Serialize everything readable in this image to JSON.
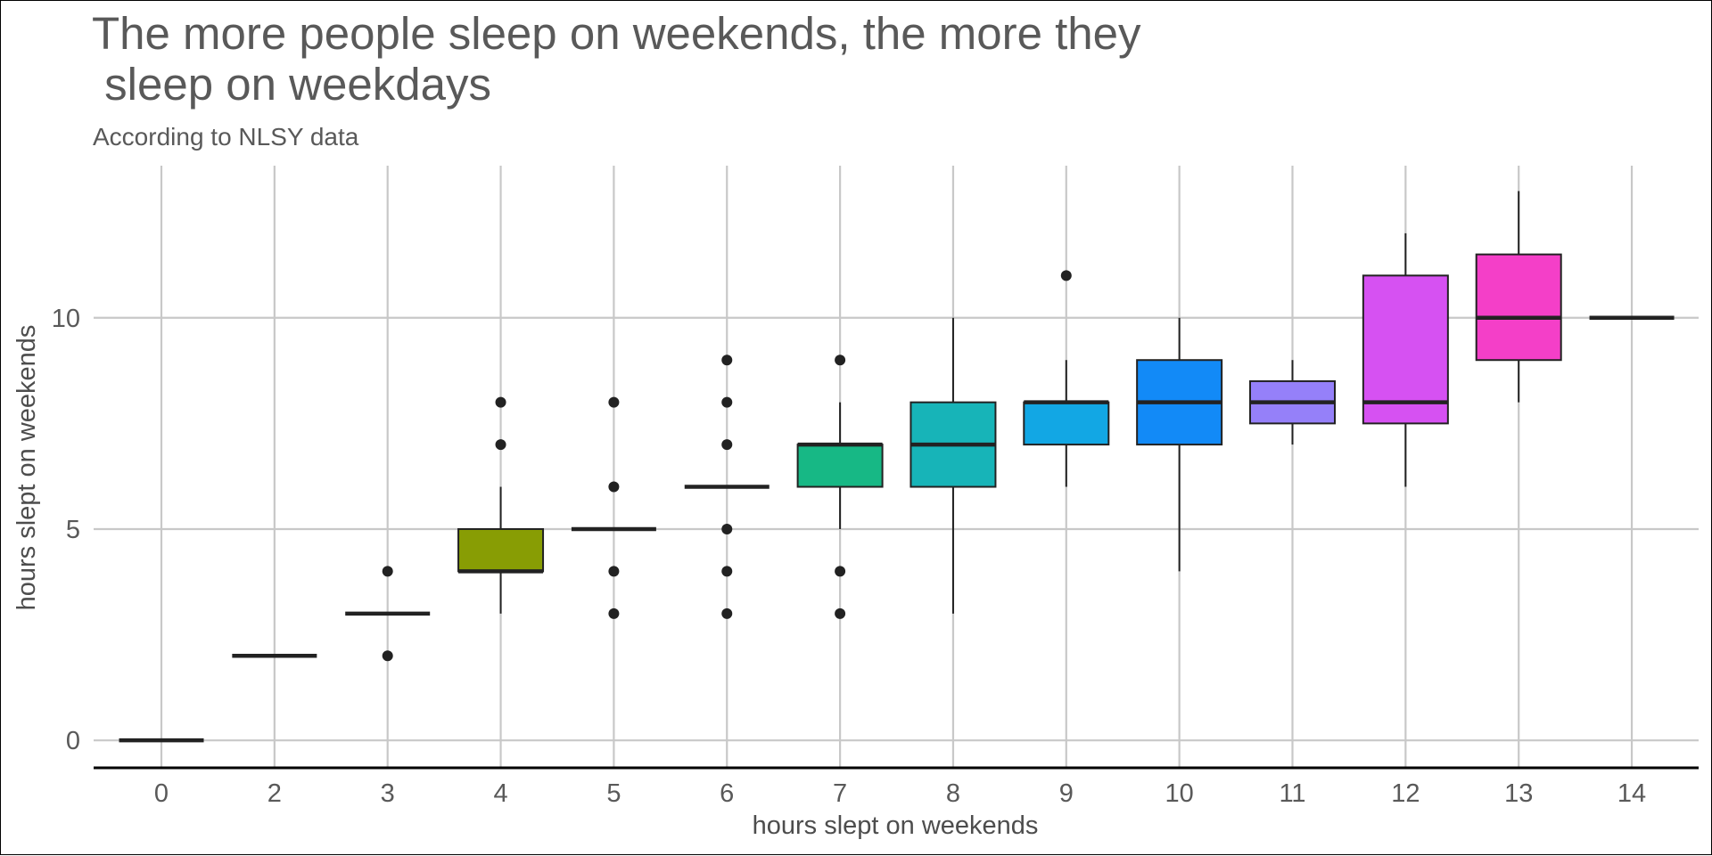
{
  "chart_data": {
    "type": "box",
    "title": [
      "The more people sleep on weekends, the more they",
      " sleep on weekdays"
    ],
    "subtitle": "According to NLSY data",
    "xlabel": "hours slept on weekends",
    "ylabel": "hours slept on weekends",
    "ylim": [
      -0.65,
      13.6
    ],
    "yticks": [
      0,
      5,
      10
    ],
    "grid": true,
    "legend": "none",
    "categories": [
      "0",
      "2",
      "3",
      "4",
      "5",
      "6",
      "7",
      "8",
      "9",
      "10",
      "11",
      "12",
      "13",
      "14"
    ],
    "boxes": [
      {
        "x": "0",
        "min": 0,
        "q1": 0,
        "median": 0,
        "q3": 0,
        "max": 0,
        "outliers": [],
        "color": "#F8766D"
      },
      {
        "x": "2",
        "min": 2,
        "q1": 2,
        "median": 2,
        "q3": 2,
        "max": 2,
        "outliers": [],
        "color": "#E58700"
      },
      {
        "x": "3",
        "min": 3,
        "q1": 3,
        "median": 3,
        "q3": 3,
        "max": 3,
        "outliers": [
          2,
          4
        ],
        "color": "#C99800"
      },
      {
        "x": "4",
        "min": 3,
        "q1": 4,
        "median": 4,
        "q3": 5,
        "max": 6,
        "outliers": [
          7,
          8
        ],
        "color": "#889D04"
      },
      {
        "x": "5",
        "min": 5,
        "q1": 5,
        "median": 5,
        "q3": 5,
        "max": 5,
        "outliers": [
          3,
          4,
          6,
          8
        ],
        "color": "#6BB100"
      },
      {
        "x": "6",
        "min": 6,
        "q1": 6,
        "median": 6,
        "q3": 6,
        "max": 6,
        "outliers": [
          3,
          4,
          5,
          7,
          8,
          9
        ],
        "color": "#00BA38"
      },
      {
        "x": "7",
        "min": 5,
        "q1": 6,
        "median": 7,
        "q3": 7,
        "max": 8,
        "outliers": [
          3,
          4,
          9
        ],
        "color": "#17B885"
      },
      {
        "x": "8",
        "min": 3,
        "q1": 6,
        "median": 7,
        "q3": 8,
        "max": 10,
        "outliers": [],
        "color": "#17B4B8"
      },
      {
        "x": "9",
        "min": 6,
        "q1": 7,
        "median": 8,
        "q3": 8,
        "max": 9,
        "outliers": [
          11
        ],
        "color": "#12A7E4"
      },
      {
        "x": "10",
        "min": 4,
        "q1": 7,
        "median": 8,
        "q3": 9,
        "max": 10,
        "outliers": [],
        "color": "#128AF7"
      },
      {
        "x": "11",
        "min": 7,
        "q1": 7.5,
        "median": 8,
        "q3": 8.5,
        "max": 9,
        "outliers": [],
        "color": "#9580F9"
      },
      {
        "x": "12",
        "min": 6,
        "q1": 7.5,
        "median": 8,
        "q3": 11,
        "max": 12,
        "outliers": [],
        "color": "#D651F2"
      },
      {
        "x": "13",
        "min": 8,
        "q1": 9,
        "median": 10,
        "q3": 11.5,
        "max": 13,
        "outliers": [],
        "color": "#F43FC8"
      },
      {
        "x": "14",
        "min": 10,
        "q1": 10,
        "median": 10,
        "q3": 10,
        "max": 10,
        "outliers": [],
        "color": "#FF61C3"
      }
    ]
  }
}
